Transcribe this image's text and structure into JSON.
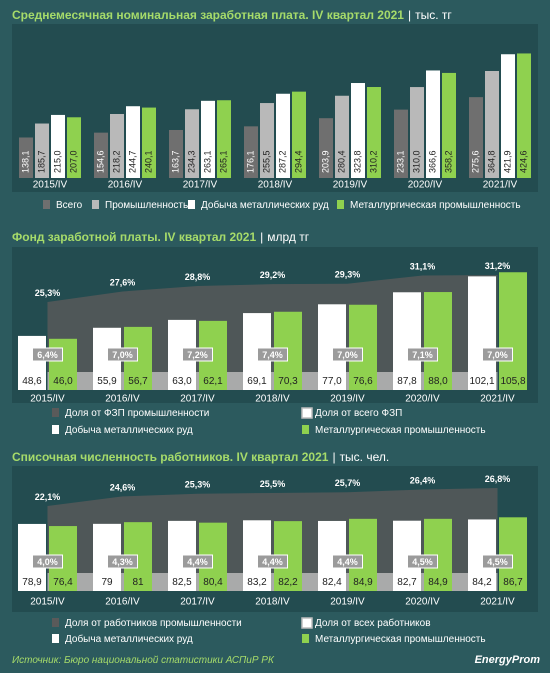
{
  "chart_data": [
    {
      "type": "bar",
      "title": "Среднемесячная номинальная заработная плата. IV квартал 2021",
      "unit": "тыс. тг",
      "categories": [
        "2015/IV",
        "2016/IV",
        "2017/IV",
        "2018/IV",
        "2019/IV",
        "2020/IV",
        "2021/IV"
      ],
      "series": [
        {
          "name": "Всего",
          "color": "#6f6f6f",
          "values": [
            138.1,
            154.6,
            163.7,
            176.1,
            203.9,
            233.1,
            275.6
          ]
        },
        {
          "name": "Промышленность",
          "color": "#b9b9b9",
          "values": [
            185.7,
            218.2,
            234.3,
            255.5,
            280.4,
            310.0,
            364.8
          ]
        },
        {
          "name": "Добыча металлических руд",
          "color": "#ffffff",
          "values": [
            215.0,
            244.7,
            263.1,
            287.2,
            323.8,
            366.6,
            421.9
          ]
        },
        {
          "name": "Металлургическая промышленность",
          "color": "#8fd14f",
          "values": [
            207.0,
            240.1,
            265.1,
            294.4,
            310.2,
            358.2,
            424.6
          ]
        }
      ],
      "labels": [
        [
          "138,1",
          "154,6",
          "163,7",
          "176,1",
          "203,9",
          "233,1",
          "275,6"
        ],
        [
          "185,7",
          "218,2",
          "234,3",
          "255,5",
          "280,4",
          "310,0",
          "364,8"
        ],
        [
          "215,0",
          "244,7",
          "263,1",
          "287,2",
          "323,8",
          "366,6",
          "421,9"
        ],
        [
          "207,0",
          "240,1",
          "265,1",
          "294,4",
          "310,2",
          "358,2",
          "424,6"
        ]
      ],
      "ylim": [
        0,
        450
      ]
    },
    {
      "type": "bar",
      "title": "Фонд заработной платы. IV квартал 2021",
      "unit": "млрд тг",
      "categories": [
        "2015/IV",
        "2016/IV",
        "2017/IV",
        "2018/IV",
        "2019/IV",
        "2020/IV",
        "2021/IV"
      ],
      "series": [
        {
          "name": "Добыча металлических руд",
          "color": "#ffffff",
          "values": [
            48.6,
            55.9,
            63.0,
            69.1,
            77.0,
            87.8,
            102.1
          ]
        },
        {
          "name": "Металлургическая промышленность",
          "color": "#8fd14f",
          "values": [
            46.0,
            56.7,
            62.1,
            70.3,
            76.6,
            88.0,
            105.8
          ]
        }
      ],
      "labels": [
        [
          "48,6",
          "55,9",
          "63,0",
          "69,1",
          "77,0",
          "87,8",
          "102,1"
        ],
        [
          "46,0",
          "56,7",
          "62,1",
          "70,3",
          "76,6",
          "88,0",
          "105,8"
        ]
      ],
      "share_industry": {
        "name": "Доля от ФЗП промышленности",
        "values": [
          25.3,
          27.6,
          28.8,
          29.2,
          29.3,
          31.1,
          31.2
        ],
        "labels": [
          "25,3%",
          "27,6%",
          "28,8%",
          "29,2%",
          "29,3%",
          "31,1%",
          "31,2%"
        ]
      },
      "share_total": {
        "name": "Доля от всего ФЗП",
        "values": [
          6.4,
          7.0,
          7.2,
          7.4,
          7.0,
          7.1,
          7.0
        ],
        "labels": [
          "6,4%",
          "7,0%",
          "7,2%",
          "7,4%",
          "7,0%",
          "7,1%",
          "7,0%"
        ]
      },
      "ylim": [
        0,
        115
      ]
    },
    {
      "type": "bar",
      "title": "Списочная численность работников. IV квартал 2021",
      "unit": "тыс. чел.",
      "categories": [
        "2015/IV",
        "2016/IV",
        "2017/IV",
        "2018/IV",
        "2019/IV",
        "2020/IV",
        "2021/IV"
      ],
      "series": [
        {
          "name": "Добыча металлических руд",
          "color": "#ffffff",
          "values": [
            78.9,
            79,
            82.5,
            83.2,
            82.4,
            82.7,
            84.2
          ]
        },
        {
          "name": "Металлургическая промышленность",
          "color": "#8fd14f",
          "values": [
            76.4,
            81,
            80.4,
            82.2,
            84.9,
            84.9,
            86.7
          ]
        }
      ],
      "labels": [
        [
          "78,9",
          "79",
          "82,5",
          "83,2",
          "82,4",
          "82,7",
          "84,2"
        ],
        [
          "76,4",
          "81",
          "80,4",
          "82,2",
          "84,9",
          "84,9",
          "86,7"
        ]
      ],
      "share_industry": {
        "name": "Доля от работников промышленности",
        "values": [
          22.1,
          24.6,
          25.3,
          25.5,
          25.7,
          26.4,
          26.8
        ],
        "labels": [
          "22,1%",
          "24,6%",
          "25,3%",
          "25,5%",
          "25,7%",
          "26,4%",
          "26,8%"
        ]
      },
      "share_total": {
        "name": "Доля от всех работников",
        "values": [
          4.0,
          4.3,
          4.4,
          4.4,
          4.4,
          4.5,
          4.5
        ],
        "labels": [
          "4,0%",
          "4,3%",
          "4,4%",
          "4,4%",
          "4,4%",
          "4,5%",
          "4,5%"
        ]
      },
      "ylim": [
        0,
        100
      ]
    }
  ],
  "footer": {
    "source": "Источник: Бюро национальной статистики АСПиР РК",
    "brand": "EnergyProm"
  }
}
